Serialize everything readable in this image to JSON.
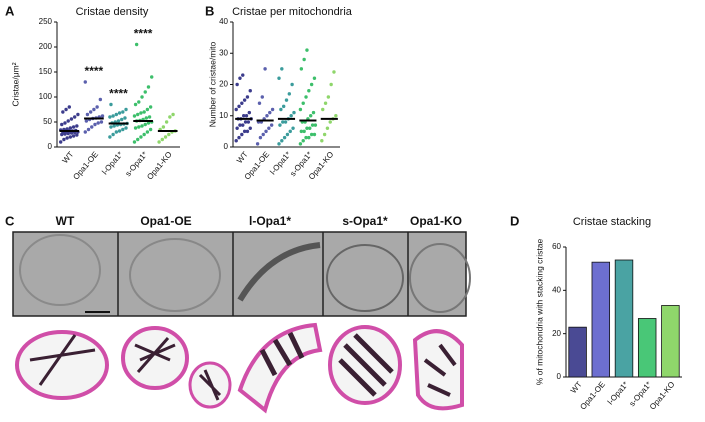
{
  "chart_data": [
    {
      "type": "dotplot",
      "panel": "A",
      "title": "Cristae density",
      "y_label": "Cristae/μm²",
      "categories": [
        "WT",
        "Opa1-OE",
        "l-Opa1*",
        "s-Opa1*",
        "Opa1-KO"
      ],
      "colors": [
        "#3c3c8c",
        "#5b60ad",
        "#3b9c9c",
        "#3dbf6b",
        "#8fd66b"
      ],
      "groups": [
        [
          10,
          15,
          18,
          20,
          22,
          24,
          25,
          26,
          27,
          28,
          29,
          30,
          30,
          31,
          32,
          32,
          33,
          34,
          35,
          36,
          38,
          40,
          42,
          45,
          48,
          52,
          56,
          60,
          65,
          70,
          75,
          80
        ],
        [
          30,
          35,
          40,
          45,
          48,
          50,
          52,
          55,
          57,
          58,
          60,
          62,
          65,
          70,
          75,
          80,
          95,
          130
        ],
        [
          20,
          25,
          30,
          32,
          35,
          38,
          40,
          42,
          44,
          45,
          46,
          47,
          48,
          50,
          52,
          55,
          58,
          60,
          62,
          65,
          68,
          70,
          75,
          85
        ],
        [
          10,
          15,
          20,
          25,
          30,
          35,
          38,
          40,
          42,
          45,
          48,
          50,
          52,
          53,
          55,
          58,
          60,
          62,
          65,
          68,
          70,
          75,
          80,
          85,
          90,
          100,
          110,
          120,
          140,
          205
        ],
        [
          10,
          15,
          20,
          25,
          30,
          32,
          35,
          40,
          50,
          60,
          65
        ]
      ],
      "medians": [
        32,
        57,
        47,
        52,
        32
      ],
      "annotations": [
        {
          "text": "****",
          "category": 1
        },
        {
          "text": "****",
          "category": 2
        },
        {
          "text": "****",
          "category": 3
        }
      ],
      "ylim": [
        0,
        250
      ],
      "yticks": [
        0,
        50,
        100,
        150,
        200,
        250
      ]
    },
    {
      "type": "dotplot",
      "panel": "B",
      "title": "Cristae per mitochondria",
      "y_label": "Number of cristae/mito",
      "categories": [
        "WT",
        "Opa1-OE",
        "l-Opa1*",
        "s-Opa1*",
        "Opa1-KO"
      ],
      "colors": [
        "#3c3c8c",
        "#5b60ad",
        "#3b9c9c",
        "#3dbf6b",
        "#8fd66b"
      ],
      "groups": [
        [
          2,
          3,
          4,
          5,
          5,
          6,
          6,
          7,
          7,
          8,
          8,
          9,
          9,
          9,
          10,
          10,
          11,
          12,
          13,
          14,
          15,
          16,
          18,
          20,
          22,
          23
        ],
        [
          1,
          3,
          4,
          5,
          6,
          7,
          8,
          8,
          9,
          10,
          11,
          12,
          14,
          16,
          25
        ],
        [
          1,
          2,
          3,
          4,
          5,
          6,
          7,
          8,
          8,
          9,
          10,
          11,
          12,
          13,
          15,
          17,
          20,
          22,
          25
        ],
        [
          1,
          2,
          3,
          3,
          4,
          4,
          5,
          5,
          6,
          6,
          7,
          7,
          8,
          8,
          9,
          10,
          11,
          12,
          14,
          16,
          18,
          20,
          22,
          25,
          28,
          31
        ],
        [
          2,
          4,
          6,
          8,
          9,
          10,
          12,
          14,
          16,
          20,
          24
        ]
      ],
      "medians": [
        9,
        8.5,
        9,
        8.5,
        9
      ],
      "ylim": [
        0,
        40
      ],
      "yticks": [
        0,
        10,
        20,
        30,
        40
      ]
    },
    {
      "type": "bar",
      "panel": "D",
      "title": "Cristae stacking",
      "y_label": "% of mitochondria with stacking cristae",
      "categories": [
        "WT",
        "Opa1-OE",
        "l-Opa1*",
        "s-Opa1*",
        "Opa1-KO"
      ],
      "colors": [
        "#4a4a94",
        "#6d6fd0",
        "#4aa3a3",
        "#49c777",
        "#8fd66b"
      ],
      "values": [
        23,
        53,
        54,
        27,
        33
      ],
      "ylim": [
        0,
        60
      ],
      "yticks": [
        0,
        20,
        40,
        60
      ]
    }
  ],
  "panel_c": {
    "letter": "C",
    "labels": [
      "WT",
      "Opa1-OE",
      "l-Opa1*",
      "s-Opa1*",
      "Opa1-KO"
    ]
  }
}
